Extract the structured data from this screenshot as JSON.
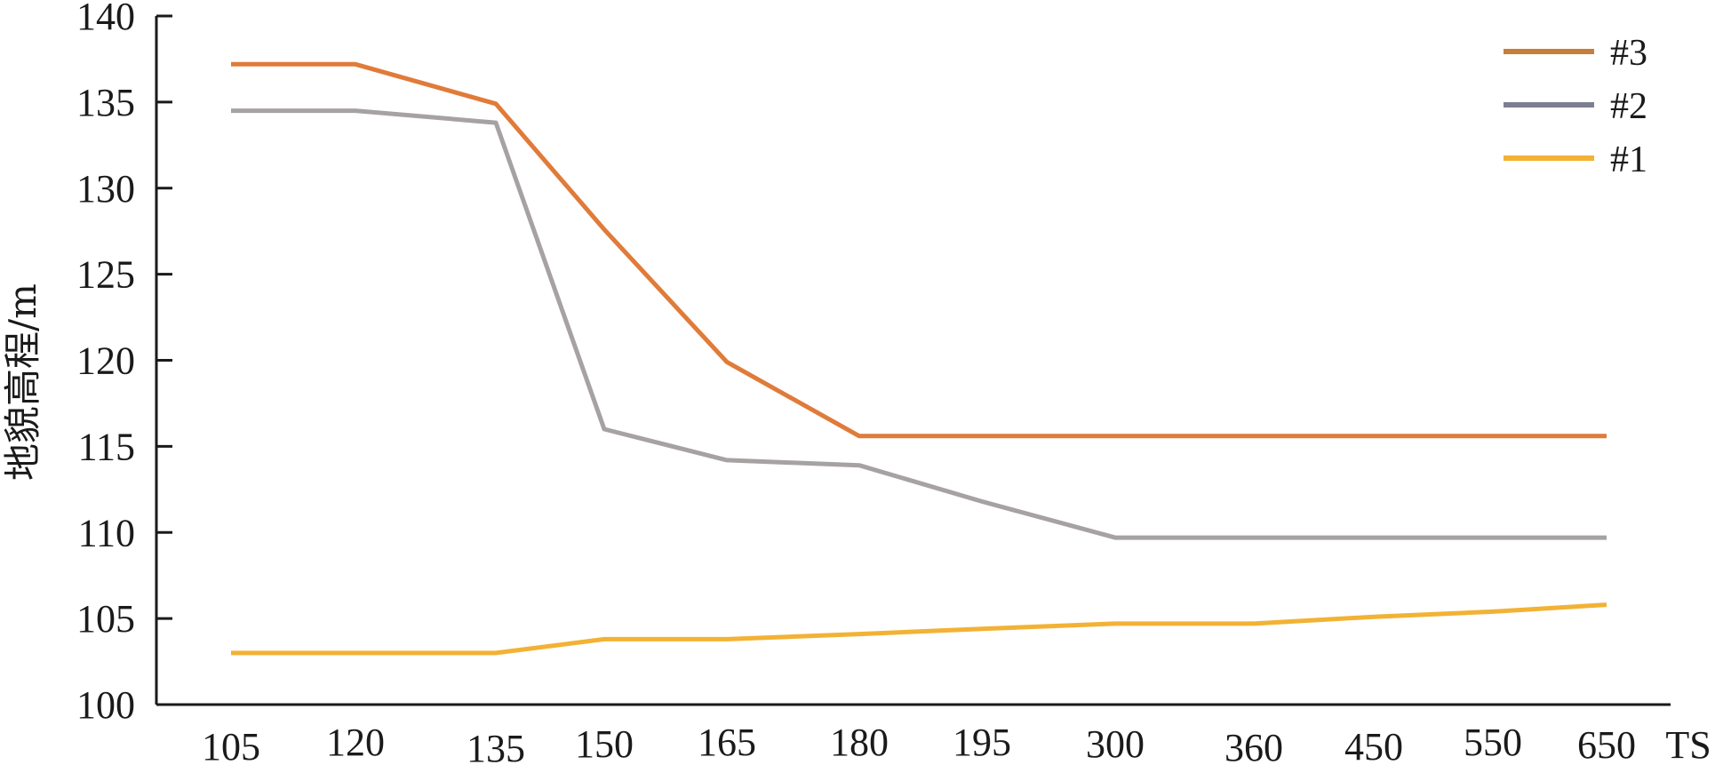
{
  "chart_data": {
    "type": "line",
    "title": "",
    "xlabel": "TS",
    "ylabel": "地貌高程/m",
    "categories": [
      "105",
      "120",
      "135",
      "150",
      "165",
      "180",
      "195",
      "300",
      "360",
      "450",
      "550",
      "650"
    ],
    "ylim": [
      100,
      140
    ],
    "yticks": [
      "100",
      "105",
      "110",
      "115",
      "120",
      "125",
      "130",
      "135",
      "140"
    ],
    "grid": false,
    "legend_position": "top-right",
    "series": [
      {
        "name": "#3",
        "color": "#e07b39",
        "legend_color": "#c97d3a",
        "x": [
          105,
          120,
          135,
          150,
          165,
          180,
          195,
          300,
          360,
          450,
          550,
          650
        ],
        "values": [
          137.2,
          137.2,
          134.9,
          127.6,
          119.9,
          115.6,
          115.6,
          115.6,
          115.6,
          115.6,
          115.6,
          115.6
        ]
      },
      {
        "name": "#2",
        "color": "#a7a2a2",
        "legend_color": "#7c7f91",
        "x": [
          105,
          120,
          135,
          150,
          165,
          180,
          195,
          300,
          360,
          450,
          550,
          650
        ],
        "values": [
          134.5,
          134.5,
          133.8,
          116.0,
          114.2,
          113.9,
          111.8,
          109.7,
          109.7,
          109.7,
          109.7,
          109.7
        ]
      },
      {
        "name": "#1",
        "color": "#f2b234",
        "legend_color": "#f2b234",
        "x": [
          105,
          120,
          135,
          150,
          165,
          180,
          195,
          300,
          360,
          450,
          550,
          650
        ],
        "values": [
          103.0,
          103.0,
          103.0,
          103.8,
          103.8,
          104.1,
          104.4,
          104.7,
          104.7,
          105.1,
          105.4,
          105.8
        ]
      }
    ]
  }
}
